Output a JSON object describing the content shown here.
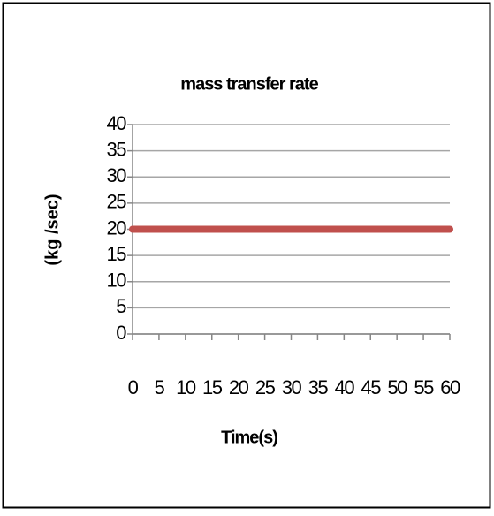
{
  "chart_data": {
    "type": "line",
    "title": "mass transfer rate",
    "x_label": "Time(s)",
    "y_label": "(kg /sec)",
    "x": [
      0,
      5,
      10,
      15,
      20,
      25,
      30,
      35,
      40,
      45,
      50,
      55,
      60
    ],
    "series": [
      {
        "name": "mass transfer rate",
        "color": "#c0504d",
        "values": [
          20,
          20,
          20,
          20,
          20,
          20,
          20,
          20,
          20,
          20,
          20,
          20,
          20
        ]
      }
    ],
    "xlim": [
      0,
      60
    ],
    "xticks": [
      0,
      5,
      10,
      15,
      20,
      25,
      30,
      35,
      40,
      45,
      50,
      55,
      60
    ],
    "ylim": [
      0,
      40
    ],
    "yticks": [
      0,
      5,
      10,
      15,
      20,
      25,
      30,
      35,
      40
    ],
    "grid": true
  }
}
